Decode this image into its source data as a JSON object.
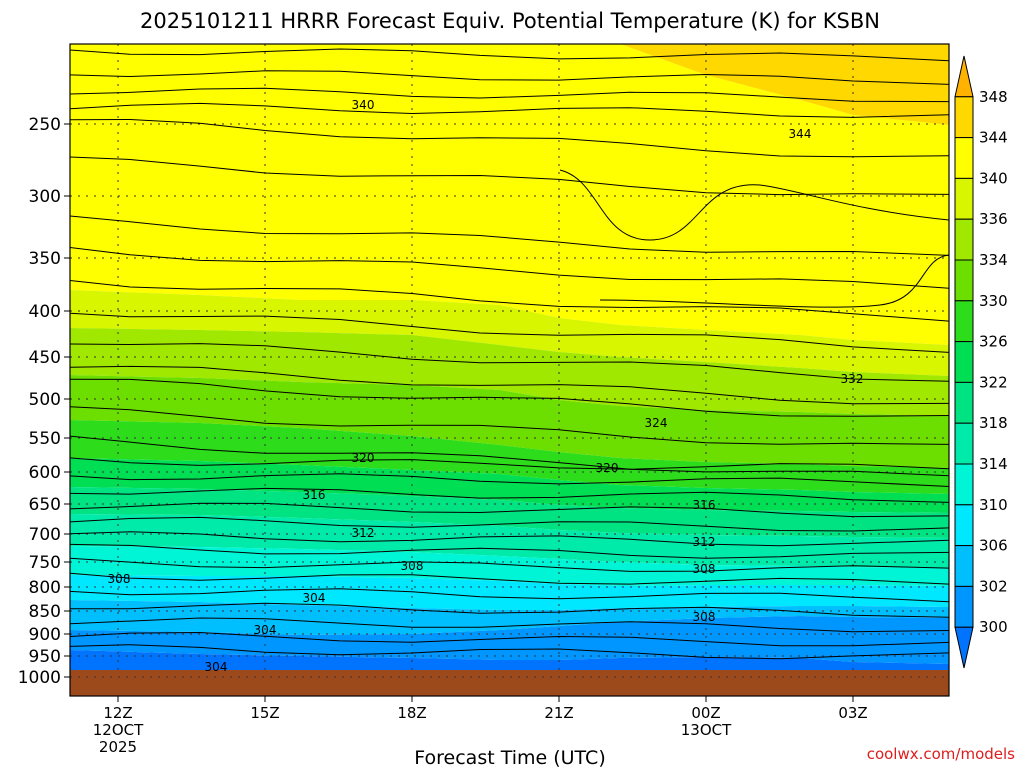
{
  "chart_data": {
    "type": "heatmap",
    "title": "2025101211 HRRR Forecast Equiv. Potential Temperature (K) for KSBN",
    "xlabel": "Forecast Time (UTC)",
    "ylabel": "",
    "x_ticks": [
      {
        "label": "12Z",
        "sub1": "12OCT",
        "sub2": "2025"
      },
      {
        "label": "15Z",
        "sub1": "",
        "sub2": ""
      },
      {
        "label": "18Z",
        "sub1": "",
        "sub2": ""
      },
      {
        "label": "21Z",
        "sub1": "",
        "sub2": ""
      },
      {
        "label": "00Z",
        "sub1": "13OCT",
        "sub2": ""
      },
      {
        "label": "03Z",
        "sub1": "",
        "sub2": ""
      }
    ],
    "y_ticks": [
      "250",
      "300",
      "350",
      "400",
      "450",
      "500",
      "550",
      "600",
      "650",
      "700",
      "750",
      "800",
      "850",
      "900",
      "950",
      "1000"
    ],
    "y_values": [
      250,
      300,
      350,
      400,
      450,
      500,
      550,
      600,
      650,
      700,
      750,
      800,
      850,
      900,
      950,
      1000
    ],
    "colorbar": {
      "labels": [
        "348",
        "344",
        "340",
        "336",
        "334",
        "330",
        "326",
        "322",
        "318",
        "314",
        "310",
        "306",
        "302",
        "300"
      ],
      "colors": [
        "#ffb300",
        "#ffd800",
        "#ffff00",
        "#d7f600",
        "#a0e800",
        "#6ddf00",
        "#2ddc1b",
        "#00de54",
        "#00e382",
        "#00eaaa",
        "#00f5d6",
        "#00e8ff",
        "#00bfff",
        "#0096ff",
        "#0073ff"
      ]
    },
    "contour_labels": [
      "340",
      "344",
      "332",
      "324",
      "320",
      "320",
      "316",
      "316",
      "312",
      "312",
      "308",
      "308",
      "308",
      "308",
      "304",
      "304",
      "304"
    ],
    "credit": "coolwx.com/models"
  }
}
